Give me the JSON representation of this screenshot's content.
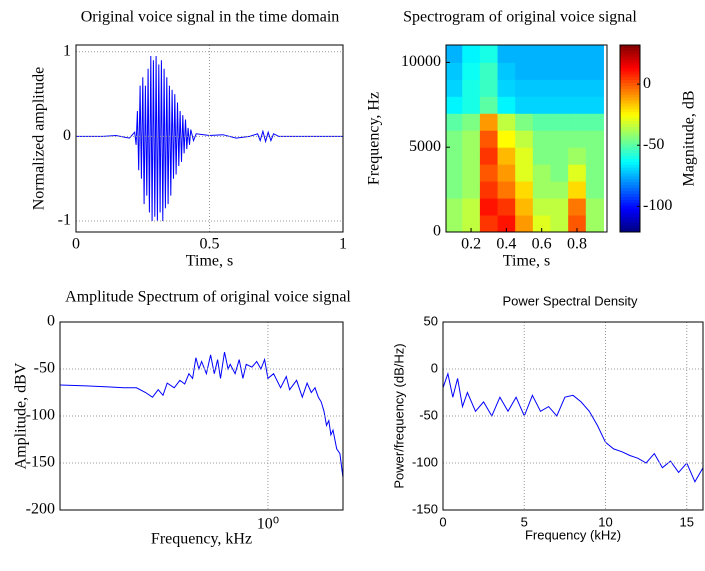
{
  "chart_data": [
    {
      "type": "line",
      "title": "Original voice signal in the time domain",
      "xlabel": "Time, s",
      "ylabel": "Normalized amplitude",
      "x": [
        0,
        0.1,
        0.15,
        0.2,
        0.22,
        0.225,
        0.23,
        0.235,
        0.24,
        0.245,
        0.25,
        0.255,
        0.26,
        0.265,
        0.27,
        0.275,
        0.28,
        0.285,
        0.29,
        0.295,
        0.3,
        0.305,
        0.31,
        0.315,
        0.32,
        0.325,
        0.33,
        0.335,
        0.34,
        0.345,
        0.35,
        0.355,
        0.36,
        0.365,
        0.37,
        0.375,
        0.38,
        0.385,
        0.39,
        0.395,
        0.4,
        0.405,
        0.41,
        0.415,
        0.42,
        0.425,
        0.43,
        0.44,
        0.45,
        0.5,
        0.55,
        0.6,
        0.65,
        0.68,
        0.69,
        0.7,
        0.71,
        0.72,
        0.73,
        0.74,
        0.76,
        0.9,
        1
      ],
      "values": [
        0,
        0,
        0.01,
        -0.02,
        0.05,
        -0.1,
        0.3,
        -0.4,
        0.6,
        -0.5,
        0.7,
        -0.8,
        0.6,
        -0.7,
        0.8,
        -0.9,
        0.95,
        -1.0,
        0.9,
        -0.95,
        0.95,
        -1.0,
        0.85,
        -0.9,
        0.9,
        -1.0,
        0.8,
        -0.85,
        0.7,
        -0.8,
        0.6,
        -0.7,
        0.55,
        -0.5,
        0.5,
        -0.45,
        0.4,
        -0.35,
        0.3,
        -0.3,
        0.25,
        -0.2,
        0.2,
        -0.15,
        0.1,
        -0.1,
        0.08,
        -0.05,
        0.03,
        0.01,
        0.02,
        -0.02,
        0,
        0.03,
        -0.05,
        0.06,
        -0.06,
        0.05,
        -0.05,
        0.03,
        0,
        0,
        0
      ],
      "color": "#0000ff",
      "xlim": [
        0,
        1
      ],
      "ylim": [
        -1.13,
        1.08
      ],
      "xticks": [
        0,
        0.5,
        1
      ],
      "yticks": [
        -1,
        0,
        1
      ],
      "grid": true
    },
    {
      "type": "heatmap",
      "title": "Spectrogram of original voice signal",
      "xlabel": "Time, s",
      "ylabel": "Frequency, Hz",
      "x": [
        0.1,
        0.2,
        0.3,
        0.4,
        0.5,
        0.6,
        0.7,
        0.8,
        0.9
      ],
      "y": [
        500,
        1500,
        2500,
        3500,
        4500,
        5500,
        6500,
        7500,
        8500,
        9500,
        10500
      ],
      "z": [
        [
          -40,
          -35,
          5,
          10,
          -10,
          -30,
          -35,
          0,
          -40
        ],
        [
          -40,
          -35,
          10,
          5,
          -15,
          -35,
          -35,
          -5,
          -40
        ],
        [
          -45,
          -40,
          5,
          -5,
          -20,
          -40,
          -40,
          -20,
          -45
        ],
        [
          -45,
          -40,
          0,
          -10,
          -30,
          -40,
          -45,
          -30,
          -45
        ],
        [
          -45,
          -40,
          5,
          -15,
          -30,
          -45,
          -45,
          -40,
          -45
        ],
        [
          -45,
          -40,
          0,
          -25,
          -35,
          -45,
          -45,
          -45,
          -45
        ],
        [
          -50,
          -45,
          -10,
          -35,
          -45,
          -50,
          -50,
          -50,
          -50
        ],
        [
          -65,
          -60,
          -50,
          -65,
          -70,
          -70,
          -70,
          -70,
          -70
        ],
        [
          -70,
          -60,
          -55,
          -70,
          -72,
          -72,
          -72,
          -72,
          -72
        ],
        [
          -72,
          -62,
          -55,
          -72,
          -75,
          -75,
          -75,
          -75,
          -75
        ],
        [
          -75,
          -65,
          -60,
          -75,
          -75,
          -75,
          -75,
          -75,
          -75
        ]
      ],
      "xlim": [
        0.058,
        0.97
      ],
      "ylim": [
        0,
        11025
      ],
      "xticks": [
        0.2,
        0.4,
        0.6,
        0.8
      ],
      "yticks": [
        0,
        5000,
        10000
      ],
      "colormap": "jet",
      "clim": [
        -121,
        32
      ],
      "cticks": [
        -100,
        -50,
        0
      ],
      "clabel": "Magnitude, dB"
    },
    {
      "type": "line",
      "title": "Amplitude Spectrum of original voice signal",
      "xlabel": "Frequency, kHz",
      "ylabel": "Amplitude, dBV",
      "x": [
        0.0013,
        0.003,
        0.006,
        0.01,
        0.015,
        0.02,
        0.025,
        0.03,
        0.035,
        0.04,
        0.05,
        0.06,
        0.07,
        0.08,
        0.09,
        0.1,
        0.11,
        0.12,
        0.14,
        0.16,
        0.18,
        0.2,
        0.22,
        0.25,
        0.28,
        0.3,
        0.35,
        0.4,
        0.45,
        0.5,
        0.6,
        0.7,
        0.8,
        0.9,
        1,
        1.2,
        1.5,
        1.8,
        2,
        2.5,
        3,
        3.5,
        4,
        4.5,
        5,
        5.5,
        6,
        6.5,
        7,
        7.5,
        8,
        9,
        10,
        11
      ],
      "values": [
        -67,
        -68,
        -69,
        -70,
        -70,
        -75,
        -80,
        -72,
        -78,
        -65,
        -70,
        -62,
        -66,
        -55,
        -60,
        -38,
        -50,
        -42,
        -55,
        -35,
        -55,
        -40,
        -60,
        -32,
        -50,
        -45,
        -55,
        -40,
        -60,
        -45,
        -48,
        -42,
        -50,
        -40,
        -60,
        -55,
        -70,
        -58,
        -72,
        -62,
        -80,
        -65,
        -75,
        -70,
        -80,
        -85,
        -95,
        -110,
        -105,
        -120,
        -115,
        -135,
        -140,
        -165
      ],
      "color": "#0000ff",
      "xscale": "log",
      "xlim": [
        0.0013,
        11.025
      ],
      "ylim": [
        -200,
        0
      ],
      "xticks": [
        {
          "value": 1,
          "label": "10⁰"
        }
      ],
      "yticks": [
        -200,
        -150,
        -100,
        -50,
        0
      ],
      "grid": true
    },
    {
      "type": "line",
      "title": "Power Spectral Density",
      "xlabel": "Frequency (kHz)",
      "ylabel": "Power/frequency (dB/Hz)",
      "x": [
        0,
        0.3,
        0.6,
        0.9,
        1.2,
        1.5,
        2,
        2.5,
        3,
        3.5,
        4,
        4.5,
        5,
        5.5,
        6,
        6.5,
        7,
        7.5,
        8,
        8.5,
        9,
        9.5,
        10,
        10.5,
        11,
        11.5,
        12,
        12.5,
        13,
        13.5,
        14,
        14.5,
        15,
        15.5,
        16
      ],
      "values": [
        -20,
        -5,
        -30,
        -10,
        -40,
        -25,
        -45,
        -35,
        -50,
        -30,
        -45,
        -30,
        -50,
        -28,
        -45,
        -40,
        -50,
        -30,
        -28,
        -35,
        -45,
        -60,
        -78,
        -85,
        -88,
        -92,
        -95,
        -100,
        -90,
        -105,
        -98,
        -110,
        -100,
        -120,
        -105
      ],
      "color": "#0000ff",
      "xlim": [
        0,
        16
      ],
      "ylim": [
        -150,
        50
      ],
      "xticks": [
        0,
        5,
        10,
        15
      ],
      "yticks": [
        -150,
        -100,
        -50,
        0,
        50
      ],
      "grid": true
    }
  ]
}
